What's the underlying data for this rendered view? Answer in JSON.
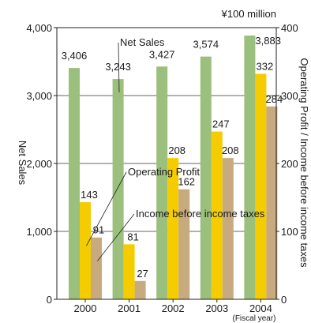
{
  "chart_data": {
    "type": "bar",
    "categories": [
      "2000",
      "2001",
      "2002",
      "2003",
      "2004"
    ],
    "x_unit": "(Fiscal year)",
    "unit_label": "¥100 million",
    "ylabel_left": "Net Sales",
    "ylabel_right": "Operating Profit / Income before income taxes",
    "ylim_left": [
      0,
      4000
    ],
    "ylim_right": [
      0,
      400
    ],
    "yticks_left": [
      "0",
      "1,000",
      "2,000",
      "3,000",
      "4,000"
    ],
    "yticks_right": [
      "0",
      "100",
      "200",
      "300",
      "400"
    ],
    "grid": true,
    "series": [
      {
        "name": "Net Sales",
        "axis": "left",
        "color": "#9bbf7c",
        "values": [
          3406,
          3243,
          3427,
          3574,
          3883
        ],
        "labels": [
          "3,406",
          "3,243",
          "3,427",
          "3,574",
          "3,883"
        ]
      },
      {
        "name": "Operating Profit",
        "axis": "right",
        "color": "#f4cc00",
        "values": [
          143,
          81,
          208,
          247,
          332
        ],
        "labels": [
          "143",
          "81",
          "208",
          "247",
          "332"
        ]
      },
      {
        "name": "Income before income taxes",
        "axis": "right",
        "color": "#c7ab7f",
        "values": [
          91,
          27,
          162,
          208,
          284
        ],
        "labels": [
          "91",
          "27",
          "162",
          "208",
          "284"
        ]
      }
    ]
  }
}
